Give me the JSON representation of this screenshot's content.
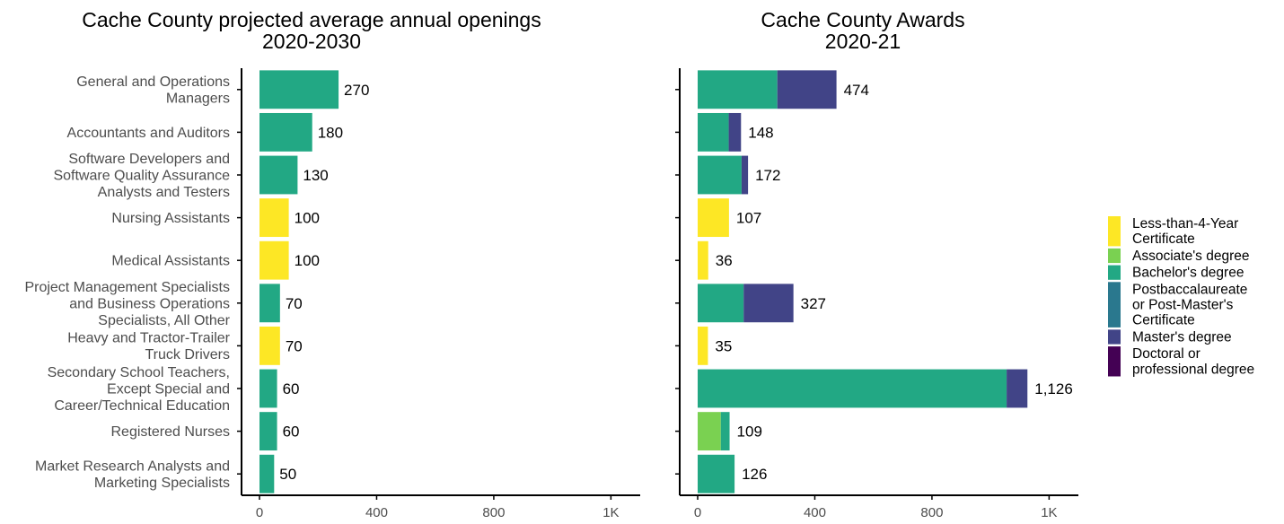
{
  "chart_data": [
    {
      "type": "bar",
      "orientation": "horizontal",
      "title": [
        "Cache County projected average annual openings",
        "2020-2030"
      ],
      "categories": [
        [
          "General and Operations",
          "Managers"
        ],
        [
          "Accountants and Auditors"
        ],
        [
          "Software Developers and",
          "Software Quality Assurance",
          "Analysts and Testers"
        ],
        [
          "Nursing Assistants"
        ],
        [
          "Medical Assistants"
        ],
        [
          "Project Management Specialists",
          "and Business Operations",
          "Specialists, All Other"
        ],
        [
          "Heavy and Tractor-Trailer",
          "Truck Drivers"
        ],
        [
          "Secondary School Teachers,",
          "Except Special and",
          "Career/Technical Education"
        ],
        [
          "Registered Nurses"
        ],
        [
          "Market Research Analysts and",
          "Marketing Specialists"
        ]
      ],
      "values": [
        270,
        180,
        130,
        100,
        100,
        70,
        70,
        60,
        60,
        50
      ],
      "value_labels": [
        "270",
        "180",
        "130",
        "100",
        "100",
        "70",
        "70",
        "60",
        "60",
        "50"
      ],
      "education_level": [
        "Bachelor's degree",
        "Bachelor's degree",
        "Bachelor's degree",
        "Less-than-4-Year Certificate",
        "Less-than-4-Year Certificate",
        "Bachelor's degree",
        "Less-than-4-Year Certificate",
        "Bachelor's degree",
        "Bachelor's degree",
        "Bachelor's degree"
      ],
      "xlim": [
        0,
        1300
      ],
      "xticks": [
        0,
        400,
        800,
        1200
      ],
      "xtick_labels": [
        "0",
        "400",
        "800",
        "1K"
      ],
      "grid": false
    },
    {
      "type": "bar",
      "orientation": "horizontal",
      "stacked": true,
      "title": [
        "Cache County Awards",
        "2020-21"
      ],
      "series": [
        {
          "name": "Less-than-4-Year Certificate",
          "values": [
            0,
            0,
            0,
            107,
            36,
            0,
            35,
            0,
            0,
            0
          ]
        },
        {
          "name": "Associate's degree",
          "values": [
            0,
            0,
            0,
            0,
            0,
            0,
            0,
            0,
            79,
            0
          ]
        },
        {
          "name": "Bachelor's degree",
          "values": [
            272,
            106,
            150,
            0,
            0,
            157,
            0,
            1055,
            30,
            126
          ]
        },
        {
          "name": "Postbaccalaureate or Post-Master's Certificate",
          "values": [
            0,
            0,
            0,
            0,
            0,
            0,
            0,
            0,
            0,
            0
          ]
        },
        {
          "name": "Master's degree",
          "values": [
            202,
            42,
            22,
            0,
            0,
            170,
            0,
            71,
            0,
            0
          ]
        },
        {
          "name": "Doctoral or professional degree",
          "values": [
            0,
            0,
            0,
            0,
            0,
            0,
            0,
            0,
            0,
            0
          ]
        }
      ],
      "totals": [
        474,
        148,
        172,
        107,
        36,
        327,
        35,
        1126,
        109,
        126
      ],
      "total_labels": [
        "474",
        "148",
        "172",
        "107",
        "36",
        "327",
        "35",
        "1,126",
        "109",
        "126"
      ],
      "xlim": [
        0,
        1300
      ],
      "xticks": [
        0,
        400,
        800,
        1200
      ],
      "xtick_labels": [
        "0",
        "400",
        "800",
        "1K"
      ],
      "grid": false
    }
  ],
  "legend": {
    "placement": "right",
    "items": [
      {
        "lines": [
          "Less-than-4-Year",
          "Certificate"
        ],
        "color": "#fde725"
      },
      {
        "lines": [
          "Associate's degree"
        ],
        "color": "#7ad151"
      },
      {
        "lines": [
          "Bachelor's degree"
        ],
        "color": "#22a884"
      },
      {
        "lines": [
          "Postbaccalaureate",
          "or Post-Master's",
          "Certificate"
        ],
        "color": "#2a788e"
      },
      {
        "lines": [
          "Master's degree"
        ],
        "color": "#414487"
      },
      {
        "lines": [
          "Doctoral or",
          "professional degree"
        ],
        "color": "#440154"
      }
    ]
  },
  "colors": {
    "Less-than-4-Year Certificate": "#fde725",
    "Associate's degree": "#7ad151",
    "Bachelor's degree": "#22a884",
    "Postbaccalaureate or Post-Master's Certificate": "#2a788e",
    "Master's degree": "#414487",
    "Doctoral or professional degree": "#440154"
  }
}
